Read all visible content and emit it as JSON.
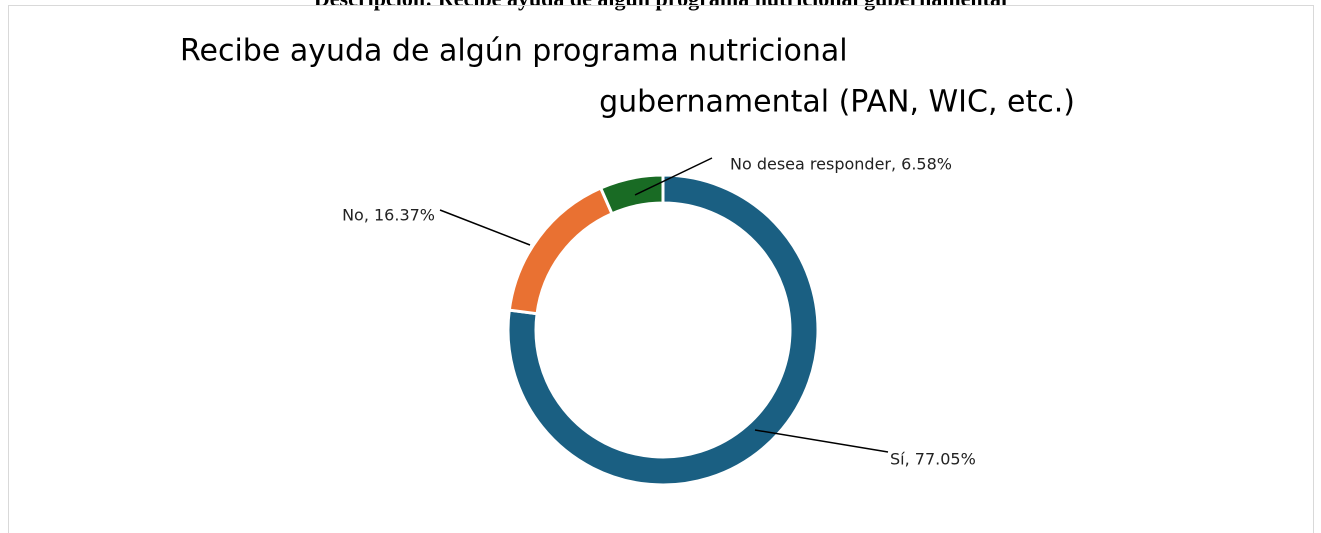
{
  "heading": "Descripción: Recibe ayuda de algún programa nutricional gubernamental",
  "chart_data": {
    "type": "donut",
    "title": [
      "Recibe ayuda de algún programa nutricional",
      "gubernamental (PAN, WIC, etc.)"
    ],
    "categories": [
      "Sí",
      "No",
      "No desea responder"
    ],
    "values": [
      77.05,
      16.37,
      6.58
    ],
    "value_labels": [
      "Sí, 77.05%",
      "No, 16.37%",
      "No desea responder, 6.58%"
    ],
    "colors": [
      "#1a5f82",
      "#e97132",
      "#196b24"
    ]
  }
}
